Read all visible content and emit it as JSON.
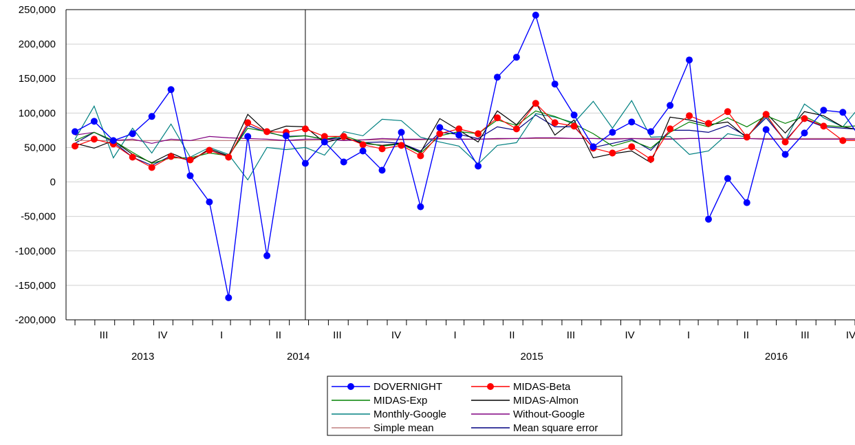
{
  "chart_data": {
    "type": "line",
    "ylim": [
      -200000,
      250000
    ],
    "y_ticks": [
      "250,000",
      "200,000",
      "150,000",
      "100,000",
      "50,000",
      "0",
      "-50,000",
      "-100,000",
      "-150,000",
      "-200,000"
    ],
    "y_tick_values": [
      250000,
      200000,
      150000,
      100000,
      50000,
      0,
      -50000,
      -100000,
      -150000,
      -200000
    ],
    "grid": true,
    "x_start": "2013-06-17",
    "x_end": "2016-11-01",
    "period_ticks": [
      {
        "label": "III",
        "x": "2013-08-15"
      },
      {
        "label": "IV",
        "x": "2013-11-15"
      },
      {
        "label": "I",
        "x": "2014-02-15"
      },
      {
        "label": "II",
        "x": "2014-05-15"
      },
      {
        "label": "III",
        "x": "2014-08-15"
      },
      {
        "label": "IV",
        "x": "2014-11-15"
      },
      {
        "label": "I",
        "x": "2015-02-15"
      },
      {
        "label": "II",
        "x": "2015-05-15"
      },
      {
        "label": "III",
        "x": "2015-08-15"
      },
      {
        "label": "IV",
        "x": "2015-11-15"
      },
      {
        "label": "I",
        "x": "2016-02-15"
      },
      {
        "label": "II",
        "x": "2016-05-15"
      },
      {
        "label": "III",
        "x": "2016-08-15"
      },
      {
        "label": "IV",
        "x": "2016-11-01"
      }
    ],
    "year_labels": [
      {
        "label": "2013",
        "x": "2013-10-15"
      },
      {
        "label": "2014",
        "x": "2014-06-15"
      },
      {
        "label": "2015",
        "x": "2015-06-15"
      },
      {
        "label": "2016",
        "x": "2016-07-01"
      }
    ],
    "vertical_line_x": "2014-06-26",
    "dates": [
      "2013-07-01",
      "2013-07-31",
      "2013-08-30",
      "2013-09-29",
      "2013-10-29",
      "2013-11-28",
      "2013-12-28",
      "2014-01-27",
      "2014-02-26",
      "2014-03-28",
      "2014-04-27",
      "2014-05-27",
      "2014-06-26",
      "2014-07-26",
      "2014-08-25",
      "2014-09-24",
      "2014-10-24",
      "2014-11-23",
      "2014-12-23",
      "2015-01-22",
      "2015-02-21",
      "2015-03-23",
      "2015-04-22",
      "2015-05-22",
      "2015-06-21",
      "2015-07-21",
      "2015-08-20",
      "2015-09-19",
      "2015-10-19",
      "2015-11-18",
      "2015-12-18",
      "2016-01-17",
      "2016-02-16",
      "2016-03-17",
      "2016-04-16",
      "2016-05-16",
      "2016-06-15",
      "2016-07-15",
      "2016-08-14",
      "2016-09-13",
      "2016-10-13",
      "2016-11-12"
    ],
    "series": [
      {
        "name": "DOVERNIGHT",
        "color": "#0000ff",
        "marker": true,
        "values": [
          73000,
          88000,
          60000,
          70000,
          95000,
          134000,
          9000,
          -29000,
          -168000,
          66000,
          -107000,
          67000,
          27000,
          58000,
          29000,
          45000,
          17000,
          72000,
          -36000,
          79000,
          68000,
          23000,
          152000,
          181000,
          242000,
          142000,
          97000,
          51000,
          72000,
          87000,
          73000,
          111000,
          177000,
          -54000,
          5000,
          -30000,
          76000,
          40000,
          71000,
          104000,
          101000,
          60000
        ]
      },
      {
        "name": "MIDAS-Beta",
        "color": "#ff0000",
        "marker": true,
        "values": [
          52000,
          62000,
          55000,
          36000,
          21000,
          37000,
          32000,
          46000,
          36000,
          86000,
          73000,
          72000,
          77000,
          66000,
          66000,
          54000,
          48000,
          53000,
          38000,
          70000,
          77000,
          70000,
          93000,
          77000,
          114000,
          86000,
          81000,
          49000,
          42000,
          51000,
          33000,
          77000,
          96000,
          85000,
          102000,
          65000,
          98000,
          58000,
          92000,
          81000,
          60000,
          60000
        ]
      },
      {
        "name": "MIDAS-Exp",
        "color": "#008000",
        "marker": false,
        "values": [
          60000,
          72000,
          60000,
          43000,
          27000,
          35000,
          35000,
          42000,
          38000,
          78000,
          73000,
          65000,
          67000,
          62000,
          67000,
          58000,
          52000,
          55000,
          42000,
          67000,
          73000,
          70000,
          90000,
          82000,
          103000,
          95000,
          84000,
          70000,
          52000,
          60000,
          49000,
          72000,
          87000,
          80000,
          93000,
          80000,
          96000,
          85000,
          95000,
          82000,
          80000,
          82000
        ]
      },
      {
        "name": "MIDAS-Almon",
        "color": "#000000",
        "marker": false,
        "values": [
          56000,
          49000,
          60000,
          40000,
          28000,
          42000,
          30000,
          48000,
          38000,
          98000,
          72000,
          81000,
          80000,
          57000,
          64000,
          56000,
          53000,
          56000,
          43000,
          92000,
          75000,
          58000,
          103000,
          83000,
          115000,
          68000,
          90000,
          35000,
          41000,
          45000,
          28000,
          94000,
          90000,
          83000,
          87000,
          64000,
          100000,
          71000,
          102000,
          96000,
          80000,
          75000
        ]
      },
      {
        "name": "Monthly-Google",
        "color": "#008080",
        "marker": false,
        "values": [
          62000,
          110000,
          35000,
          78000,
          42000,
          84000,
          36000,
          50000,
          40000,
          3000,
          50000,
          47000,
          50000,
          39000,
          73000,
          67000,
          91000,
          89000,
          65000,
          58000,
          52000,
          26000,
          53000,
          57000,
          99000,
          94000,
          86000,
          117000,
          78000,
          118000,
          65000,
          66000,
          40000,
          45000,
          70000,
          65000,
          96000,
          60000,
          113000,
          93000,
          80000,
          113000
        ]
      },
      {
        "name": "Without-Google",
        "color": "#800080",
        "marker": false,
        "values": [
          68000,
          72000,
          60000,
          62000,
          56000,
          62000,
          60000,
          66000,
          64000,
          63000,
          62000,
          60000,
          62000,
          62000,
          60000,
          61000,
          63000,
          62000,
          62000,
          63000,
          62000,
          62000,
          63000,
          63000,
          64000,
          64000,
          63000,
          63000,
          62000,
          63000,
          62000,
          62000,
          63000,
          63000,
          63000,
          63000,
          62000,
          62000,
          62000,
          62000,
          62000,
          62000
        ]
      },
      {
        "name": "Simple mean",
        "color": "#c08080",
        "marker": false,
        "values": [
          60000,
          60000,
          60000,
          60000,
          60000,
          60000,
          60000,
          60000,
          60000,
          60000,
          60000,
          60000,
          60000,
          61000,
          61000,
          61000,
          61000,
          61000,
          61000,
          62000,
          62000,
          62000,
          62000,
          63000,
          63000,
          63000,
          63000,
          63000,
          63000,
          63000,
          63000,
          63000,
          63000,
          63000,
          63000,
          63000,
          63000,
          63000,
          63000,
          63000,
          63000,
          63000
        ]
      },
      {
        "name": "Mean square error",
        "color": "#000080",
        "marker": false,
        "values": [
          56000,
          72000,
          58000,
          36000,
          24000,
          38000,
          31000,
          46000,
          37000,
          82000,
          72000,
          66000,
          67000,
          62000,
          64000,
          57000,
          58000,
          56000,
          45000,
          72000,
          69000,
          63000,
          80000,
          75000,
          97000,
          80000,
          80000,
          50000,
          56000,
          62000,
          46000,
          75000,
          75000,
          72000,
          82000,
          66000,
          93000,
          60000,
          91000,
          80000,
          78000,
          76000
        ]
      }
    ]
  },
  "legend": {
    "items": [
      {
        "name": "DOVERNIGHT",
        "color": "#0000ff",
        "marker": true
      },
      {
        "name": "MIDAS-Beta",
        "color": "#ff0000",
        "marker": true
      },
      {
        "name": "MIDAS-Exp",
        "color": "#008000",
        "marker": false
      },
      {
        "name": "MIDAS-Almon",
        "color": "#000000",
        "marker": false
      },
      {
        "name": "Monthly-Google",
        "color": "#008080",
        "marker": false
      },
      {
        "name": "Without-Google",
        "color": "#800080",
        "marker": false
      },
      {
        "name": "Simple mean",
        "color": "#c08080",
        "marker": false
      },
      {
        "name": "Mean square error",
        "color": "#000080",
        "marker": false
      }
    ]
  }
}
